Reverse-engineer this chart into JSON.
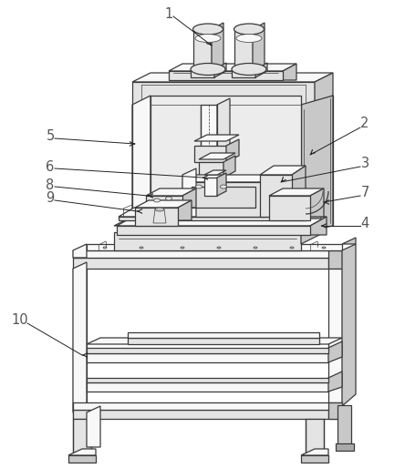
{
  "bg_color": "#ffffff",
  "line_color": "#3a3a3a",
  "lw": 0.9,
  "tlw": 0.5,
  "label_color": "#555555",
  "arrow_color": "#222222",
  "label_fs": 10.5
}
